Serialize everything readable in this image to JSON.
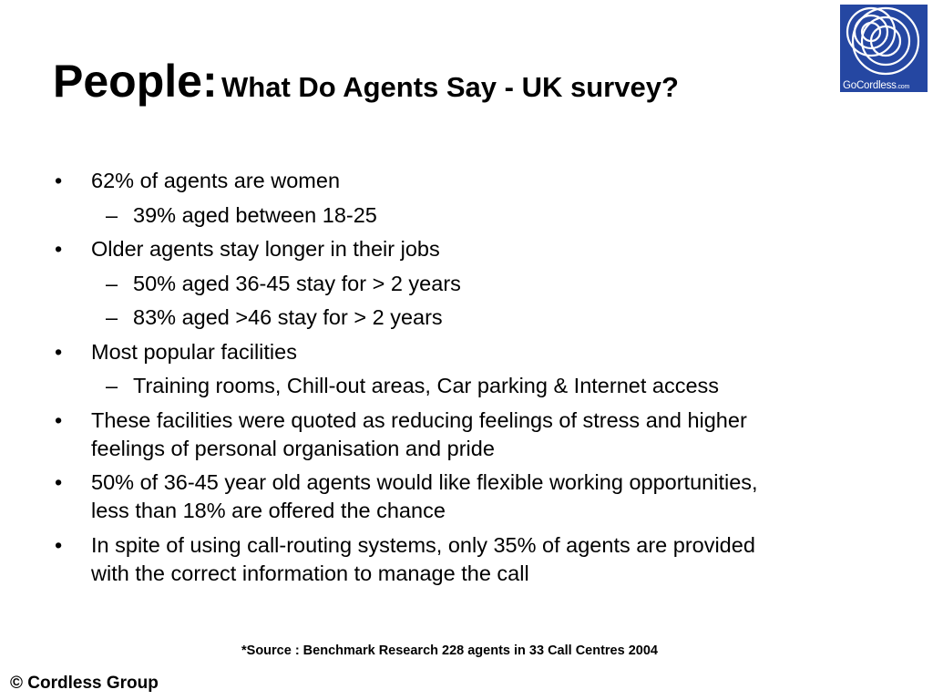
{
  "title": {
    "main": "People:",
    "sub": "What Do Agents Say - UK survey?"
  },
  "logo": {
    "brand": "GoCordless",
    "suffix": ".com",
    "background": "#2547a2"
  },
  "bullets": [
    {
      "level": 1,
      "lines": [
        "62% of agents are women"
      ]
    },
    {
      "level": 2,
      "lines": [
        "39% aged between 18-25"
      ]
    },
    {
      "level": 1,
      "lines": [
        "Older agents stay longer in their jobs"
      ]
    },
    {
      "level": 2,
      "lines": [
        "50% aged 36-45 stay for > 2 years"
      ]
    },
    {
      "level": 2,
      "lines": [
        "83% aged >46 stay for > 2 years"
      ]
    },
    {
      "level": 1,
      "lines": [
        "Most popular facilities"
      ]
    },
    {
      "level": 2,
      "lines": [
        "Training rooms, Chill-out areas, Car parking & Internet access"
      ]
    },
    {
      "level": 1,
      "lines": [
        "These facilities were quoted as reducing feelings of stress and higher",
        "feelings of personal organisation and pride"
      ]
    },
    {
      "level": 1,
      "lines": [
        "50% of 36-45 year old agents would like flexible working opportunities,",
        "less than 18% are offered the chance"
      ]
    },
    {
      "level": 1,
      "lines": [
        "In spite of using call-routing systems, only 35% of agents are provided",
        "with the correct information to manage the call"
      ]
    }
  ],
  "source_note": "*Source : Benchmark Research 228 agents in 33 Call Centres 2004",
  "copyright": "© Cordless Group"
}
